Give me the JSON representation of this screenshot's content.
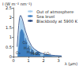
{
  "chart_data": {
    "type": "line",
    "x_label": "λ (µm)",
    "y_label": "I (W m⁻² nm⁻¹)",
    "xlim": [
      0,
      3.2
    ],
    "xticks": [
      0,
      1,
      2,
      3
    ],
    "ylim": [
      0,
      2.5
    ],
    "yticks": [
      0,
      0.5,
      1,
      1.5,
      2,
      2.5
    ],
    "legend": "upper right",
    "grid": false,
    "series": [
      {
        "name": "Out of atmosphere",
        "type": "area",
        "color": "#a9cfee",
        "x": [
          0.25,
          0.3,
          0.35,
          0.4,
          0.45,
          0.5,
          0.55,
          0.6,
          0.7,
          0.8,
          0.9,
          1.0,
          1.2,
          1.4,
          1.6,
          1.8,
          2.0,
          2.4,
          2.8,
          3.2
        ],
        "values": [
          0.1,
          0.5,
          1.0,
          1.4,
          2.0,
          1.95,
          1.85,
          1.75,
          1.45,
          1.15,
          0.95,
          0.75,
          0.5,
          0.37,
          0.28,
          0.2,
          0.14,
          0.08,
          0.05,
          0.03
        ]
      },
      {
        "name": "Sea level",
        "type": "area",
        "color": "#3f7fc0",
        "x": [
          0.3,
          0.35,
          0.4,
          0.45,
          0.5,
          0.55,
          0.6,
          0.7,
          0.76,
          0.8,
          0.9,
          0.94,
          1.0,
          1.1,
          1.13,
          1.2,
          1.3,
          1.4,
          1.5,
          1.6,
          1.7,
          1.8,
          1.9,
          2.0,
          2.1,
          2.2,
          2.4,
          2.6,
          2.8,
          3.0,
          3.2
        ],
        "values": [
          0.0,
          0.45,
          0.75,
          1.25,
          1.35,
          1.4,
          1.35,
          1.15,
          0.6,
          0.95,
          0.7,
          0.3,
          0.6,
          0.3,
          0.1,
          0.4,
          0.3,
          0.02,
          0.2,
          0.25,
          0.2,
          0.01,
          0.01,
          0.05,
          0.08,
          0.09,
          0.05,
          0.01,
          0.0,
          0.0,
          0.01
        ]
      },
      {
        "name": "Blackbody at 5900 K",
        "type": "line",
        "color": "#1f3f7a",
        "x": [
          0.25,
          0.3,
          0.35,
          0.4,
          0.45,
          0.5,
          0.6,
          0.7,
          0.8,
          1.0,
          1.2,
          1.4,
          1.6,
          1.8,
          2.0,
          2.4,
          2.8,
          3.2
        ],
        "values": [
          0.5,
          1.1,
          1.6,
          1.95,
          2.1,
          2.1,
          1.9,
          1.6,
          1.3,
          0.85,
          0.55,
          0.38,
          0.27,
          0.19,
          0.14,
          0.08,
          0.05,
          0.03
        ]
      }
    ],
    "annotations": [
      {
        "text": "O₃",
        "x": 0.3,
        "y": 0.05
      },
      {
        "text": "O₂",
        "x": 0.76,
        "y": 0.6
      },
      {
        "text": "H₂O",
        "x": 0.94,
        "y": 0.3
      },
      {
        "text": "H₂O",
        "x": 1.13,
        "y": 0.1
      },
      {
        "text": "H₂O",
        "x": 1.4,
        "y": 0.02
      },
      {
        "text": "H₂O, CO₂",
        "x": 1.9,
        "y": 0.01
      }
    ]
  }
}
